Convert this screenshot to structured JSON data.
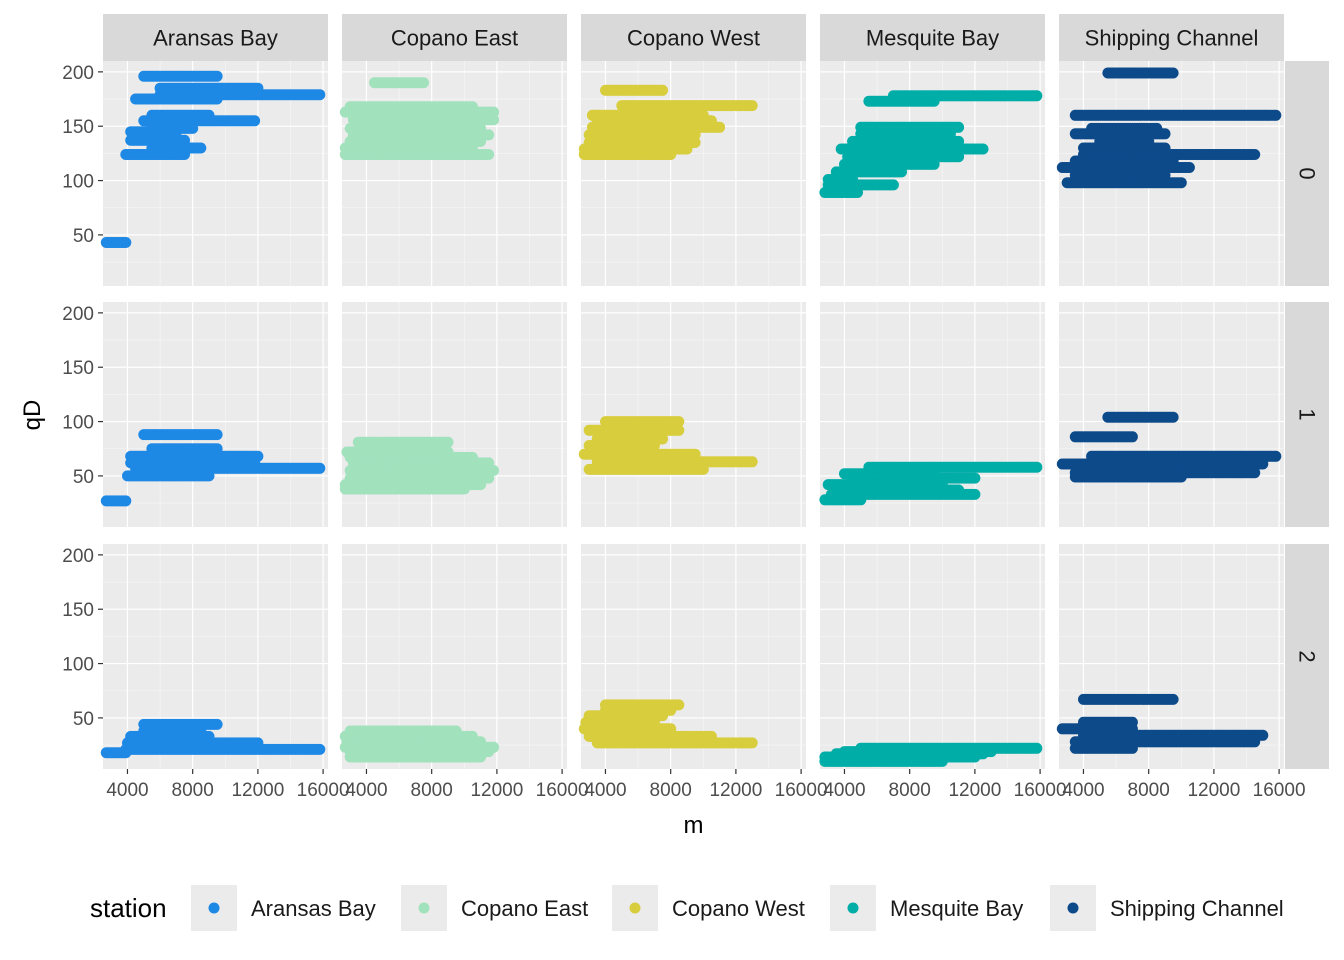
{
  "chart_data": {
    "type": "scatter",
    "facet_cols": [
      "Aransas Bay",
      "Copano East",
      "Copano West",
      "Mesquite Bay",
      "Shipping Channel"
    ],
    "facet_rows": [
      "0",
      "1",
      "2"
    ],
    "xlabel": "m",
    "ylabel": "qD",
    "xlim": [
      2500,
      16300
    ],
    "ylim": [
      3,
      210
    ],
    "x_ticks": [
      4000,
      8000,
      12000,
      16000
    ],
    "x_tick_labels": [
      "4000",
      "8000",
      "12000",
      "16000"
    ],
    "y_ticks": [
      50,
      100,
      150,
      200
    ],
    "y_tick_labels": [
      "50",
      "100",
      "150",
      "200"
    ],
    "grid": true,
    "legend": {
      "title": "station",
      "position": "bottom",
      "entries": [
        "Aransas Bay",
        "Copano East",
        "Copano West",
        "Mesquite Bay",
        "Shipping Channel"
      ]
    },
    "colors": {
      "Aransas Bay": "#1e88e5",
      "Copano East": "#a1e2bd",
      "Copano West": "#d8cd3c",
      "Mesquite Bay": "#00ada7",
      "Shipping Channel": "#0d4a8a"
    },
    "series": [
      {
        "station": "Aransas Bay",
        "row": "0",
        "segments": [
          {
            "x0": 2700,
            "x1": 3900,
            "y": 43
          },
          {
            "x0": 3900,
            "x1": 7500,
            "y": 124
          },
          {
            "x0": 5500,
            "x1": 8500,
            "y": 130
          },
          {
            "x0": 4200,
            "x1": 7500,
            "y": 137
          },
          {
            "x0": 4200,
            "x1": 7000,
            "y": 145
          },
          {
            "x0": 5500,
            "x1": 8000,
            "y": 148
          },
          {
            "x0": 5000,
            "x1": 11800,
            "y": 155
          },
          {
            "x0": 5500,
            "x1": 9000,
            "y": 160
          },
          {
            "x0": 4500,
            "x1": 9500,
            "y": 175
          },
          {
            "x0": 6000,
            "x1": 15800,
            "y": 179
          },
          {
            "x0": 6000,
            "x1": 12000,
            "y": 185
          },
          {
            "x0": 5000,
            "x1": 9500,
            "y": 196
          }
        ]
      },
      {
        "station": "Aransas Bay",
        "row": "1",
        "segments": [
          {
            "x0": 2700,
            "x1": 3900,
            "y": 27
          },
          {
            "x0": 4000,
            "x1": 9000,
            "y": 50
          },
          {
            "x0": 4500,
            "x1": 15800,
            "y": 57
          },
          {
            "x0": 4200,
            "x1": 11800,
            "y": 62
          },
          {
            "x0": 4200,
            "x1": 12000,
            "y": 68
          },
          {
            "x0": 5500,
            "x1": 9500,
            "y": 75
          },
          {
            "x0": 5000,
            "x1": 9500,
            "y": 88
          }
        ]
      },
      {
        "station": "Aransas Bay",
        "row": "2",
        "segments": [
          {
            "x0": 2700,
            "x1": 3900,
            "y": 18
          },
          {
            "x0": 3900,
            "x1": 15800,
            "y": 21
          },
          {
            "x0": 4000,
            "x1": 12000,
            "y": 27
          },
          {
            "x0": 4200,
            "x1": 9000,
            "y": 33
          },
          {
            "x0": 5000,
            "x1": 8500,
            "y": 38
          },
          {
            "x0": 5000,
            "x1": 9500,
            "y": 44
          }
        ]
      },
      {
        "station": "Copano East",
        "row": "0",
        "segments": [
          {
            "x0": 2700,
            "x1": 11500,
            "y": 124
          },
          {
            "x0": 2700,
            "x1": 10500,
            "y": 130
          },
          {
            "x0": 3000,
            "x1": 11000,
            "y": 136
          },
          {
            "x0": 3200,
            "x1": 11500,
            "y": 142
          },
          {
            "x0": 3000,
            "x1": 11000,
            "y": 148
          },
          {
            "x0": 3200,
            "x1": 11800,
            "y": 156
          },
          {
            "x0": 2700,
            "x1": 11800,
            "y": 163
          },
          {
            "x0": 3000,
            "x1": 10500,
            "y": 168
          },
          {
            "x0": 4500,
            "x1": 7500,
            "y": 190
          }
        ]
      },
      {
        "station": "Copano East",
        "row": "1",
        "segments": [
          {
            "x0": 2700,
            "x1": 10000,
            "y": 38
          },
          {
            "x0": 2700,
            "x1": 11000,
            "y": 42
          },
          {
            "x0": 3000,
            "x1": 11500,
            "y": 48
          },
          {
            "x0": 3000,
            "x1": 11800,
            "y": 55
          },
          {
            "x0": 3200,
            "x1": 11500,
            "y": 62
          },
          {
            "x0": 3000,
            "x1": 10500,
            "y": 67
          },
          {
            "x0": 2800,
            "x1": 9000,
            "y": 72
          },
          {
            "x0": 3500,
            "x1": 9000,
            "y": 81
          }
        ]
      },
      {
        "station": "Copano East",
        "row": "2",
        "segments": [
          {
            "x0": 3000,
            "x1": 11000,
            "y": 14
          },
          {
            "x0": 3000,
            "x1": 11500,
            "y": 19
          },
          {
            "x0": 2700,
            "x1": 11800,
            "y": 23
          },
          {
            "x0": 2800,
            "x1": 11000,
            "y": 28
          },
          {
            "x0": 2700,
            "x1": 10500,
            "y": 33
          },
          {
            "x0": 3000,
            "x1": 9500,
            "y": 38
          }
        ]
      },
      {
        "station": "Copano West",
        "row": "0",
        "segments": [
          {
            "x0": 2700,
            "x1": 8000,
            "y": 124
          },
          {
            "x0": 2700,
            "x1": 9000,
            "y": 129
          },
          {
            "x0": 3000,
            "x1": 9500,
            "y": 135
          },
          {
            "x0": 3000,
            "x1": 9500,
            "y": 142
          },
          {
            "x0": 3200,
            "x1": 11000,
            "y": 149
          },
          {
            "x0": 3500,
            "x1": 10500,
            "y": 155
          },
          {
            "x0": 3200,
            "x1": 10000,
            "y": 160
          },
          {
            "x0": 5000,
            "x1": 13000,
            "y": 169
          },
          {
            "x0": 4000,
            "x1": 7500,
            "y": 183
          }
        ]
      },
      {
        "station": "Copano West",
        "row": "1",
        "segments": [
          {
            "x0": 3000,
            "x1": 10000,
            "y": 56
          },
          {
            "x0": 3500,
            "x1": 13000,
            "y": 63
          },
          {
            "x0": 2700,
            "x1": 9500,
            "y": 70
          },
          {
            "x0": 3000,
            "x1": 7000,
            "y": 78
          },
          {
            "x0": 3500,
            "x1": 7500,
            "y": 84
          },
          {
            "x0": 3000,
            "x1": 8500,
            "y": 92
          },
          {
            "x0": 4000,
            "x1": 8500,
            "y": 100
          }
        ]
      },
      {
        "station": "Copano West",
        "row": "2",
        "segments": [
          {
            "x0": 3500,
            "x1": 13000,
            "y": 27
          },
          {
            "x0": 3000,
            "x1": 10500,
            "y": 33
          },
          {
            "x0": 2700,
            "x1": 8000,
            "y": 40
          },
          {
            "x0": 2800,
            "x1": 7000,
            "y": 46
          },
          {
            "x0": 3000,
            "x1": 7500,
            "y": 52
          },
          {
            "x0": 4000,
            "x1": 8000,
            "y": 57
          },
          {
            "x0": 4000,
            "x1": 8500,
            "y": 62
          }
        ]
      },
      {
        "station": "Mesquite Bay",
        "row": "0",
        "segments": [
          {
            "x0": 2800,
            "x1": 4800,
            "y": 89
          },
          {
            "x0": 3000,
            "x1": 7000,
            "y": 96
          },
          {
            "x0": 3000,
            "x1": 4500,
            "y": 101
          },
          {
            "x0": 3500,
            "x1": 7500,
            "y": 108
          },
          {
            "x0": 4000,
            "x1": 9500,
            "y": 115
          },
          {
            "x0": 4200,
            "x1": 11000,
            "y": 122
          },
          {
            "x0": 3800,
            "x1": 12500,
            "y": 129
          },
          {
            "x0": 4500,
            "x1": 11000,
            "y": 136
          },
          {
            "x0": 5000,
            "x1": 10500,
            "y": 143
          },
          {
            "x0": 5000,
            "x1": 11000,
            "y": 149
          },
          {
            "x0": 5500,
            "x1": 9500,
            "y": 173
          },
          {
            "x0": 7000,
            "x1": 15800,
            "y": 178
          }
        ]
      },
      {
        "station": "Mesquite Bay",
        "row": "1",
        "segments": [
          {
            "x0": 2800,
            "x1": 5000,
            "y": 28
          },
          {
            "x0": 3200,
            "x1": 12000,
            "y": 33
          },
          {
            "x0": 3500,
            "x1": 11000,
            "y": 37
          },
          {
            "x0": 3000,
            "x1": 10000,
            "y": 42
          },
          {
            "x0": 4500,
            "x1": 12000,
            "y": 48
          },
          {
            "x0": 4000,
            "x1": 9500,
            "y": 52
          },
          {
            "x0": 5500,
            "x1": 15800,
            "y": 58
          }
        ]
      },
      {
        "station": "Mesquite Bay",
        "row": "2",
        "segments": [
          {
            "x0": 2800,
            "x1": 10000,
            "y": 10
          },
          {
            "x0": 2800,
            "x1": 12000,
            "y": 14
          },
          {
            "x0": 3500,
            "x1": 12500,
            "y": 17
          },
          {
            "x0": 4000,
            "x1": 13000,
            "y": 19
          },
          {
            "x0": 5000,
            "x1": 15800,
            "y": 22
          }
        ]
      },
      {
        "station": "Shipping Channel",
        "row": "0",
        "segments": [
          {
            "x0": 3000,
            "x1": 10000,
            "y": 98
          },
          {
            "x0": 3500,
            "x1": 9000,
            "y": 105
          },
          {
            "x0": 2700,
            "x1": 10500,
            "y": 112
          },
          {
            "x0": 3500,
            "x1": 9500,
            "y": 118
          },
          {
            "x0": 4000,
            "x1": 14500,
            "y": 124
          },
          {
            "x0": 4000,
            "x1": 9000,
            "y": 130
          },
          {
            "x0": 5000,
            "x1": 8000,
            "y": 136
          },
          {
            "x0": 3500,
            "x1": 9000,
            "y": 143
          },
          {
            "x0": 4500,
            "x1": 8500,
            "y": 148
          },
          {
            "x0": 3500,
            "x1": 15800,
            "y": 160
          },
          {
            "x0": 5500,
            "x1": 9500,
            "y": 199
          }
        ]
      },
      {
        "station": "Shipping Channel",
        "row": "1",
        "segments": [
          {
            "x0": 3500,
            "x1": 10000,
            "y": 49
          },
          {
            "x0": 3500,
            "x1": 14500,
            "y": 53
          },
          {
            "x0": 2700,
            "x1": 15000,
            "y": 61
          },
          {
            "x0": 4500,
            "x1": 15800,
            "y": 68
          },
          {
            "x0": 3500,
            "x1": 7000,
            "y": 86
          },
          {
            "x0": 5500,
            "x1": 9500,
            "y": 104
          }
        ]
      },
      {
        "station": "Shipping Channel",
        "row": "2",
        "segments": [
          {
            "x0": 3500,
            "x1": 7000,
            "y": 22
          },
          {
            "x0": 3500,
            "x1": 14500,
            "y": 28
          },
          {
            "x0": 4000,
            "x1": 15000,
            "y": 34
          },
          {
            "x0": 2700,
            "x1": 7000,
            "y": 40
          },
          {
            "x0": 4000,
            "x1": 7000,
            "y": 46
          },
          {
            "x0": 4000,
            "x1": 9500,
            "y": 67
          }
        ]
      }
    ]
  }
}
